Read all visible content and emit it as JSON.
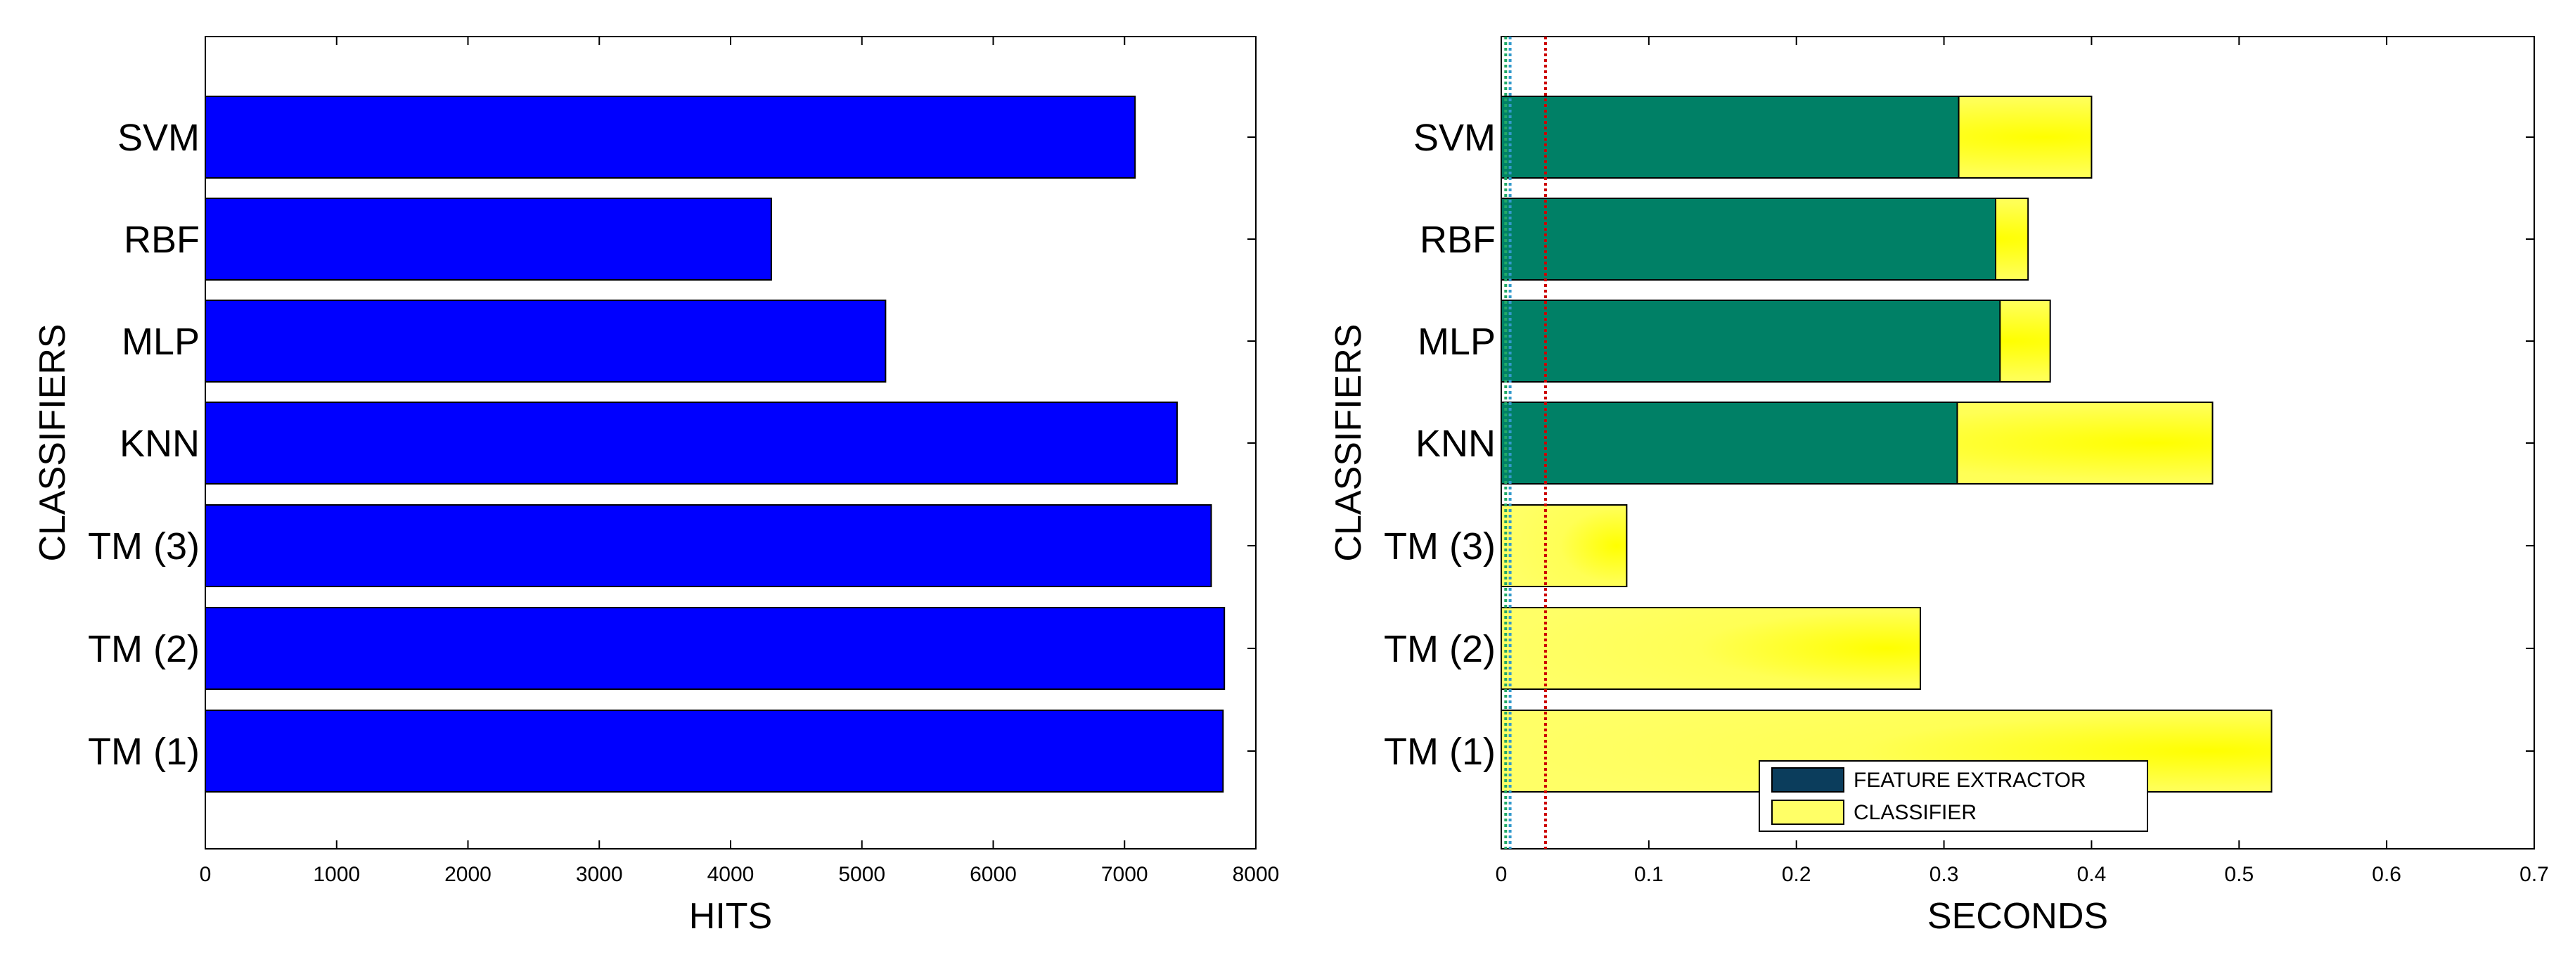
{
  "colors": {
    "hits_bar": "#0000ff",
    "feature_extractor": "#008066",
    "feature_extractor_legend": "#0b3d5c",
    "classifier": "#ffff66",
    "ref_line_red": "#cc0000",
    "ref_line_green": "#22aa66",
    "ref_line_blue": "#3399cc"
  },
  "chart_data": [
    {
      "type": "bar",
      "orientation": "horizontal",
      "categories": [
        "TM (1)",
        "TM (2)",
        "TM (3)",
        "KNN",
        "MLP",
        "RBF",
        "SVM"
      ],
      "values": [
        7750,
        7760,
        7660,
        7400,
        5180,
        4310,
        7080
      ],
      "xlabel": "HITS",
      "ylabel": "CLASSIFIERS",
      "xlim": [
        0,
        8000
      ],
      "xticks": [
        0,
        1000,
        2000,
        3000,
        4000,
        5000,
        6000,
        7000,
        8000
      ],
      "grid": false
    },
    {
      "type": "bar",
      "orientation": "horizontal",
      "stacked": true,
      "categories": [
        "TM (1)",
        "TM (2)",
        "TM (3)",
        "KNN",
        "MLP",
        "RBF",
        "SVM"
      ],
      "series": [
        {
          "name": "FEATURE EXTRACTOR",
          "values": [
            0,
            0,
            0,
            0.309,
            0.338,
            0.335,
            0.31
          ]
        },
        {
          "name": "CLASSIFIER",
          "values": [
            0.522,
            0.284,
            0.085,
            0.173,
            0.034,
            0.022,
            0.09
          ]
        }
      ],
      "reference_lines": [
        0.003,
        0.006,
        0.03
      ],
      "xlabel": "SECONDS",
      "ylabel": "CLASSIFIERS",
      "xlim": [
        0,
        0.7
      ],
      "xticks": [
        "0",
        "0.1",
        "0.2",
        "0.3",
        "0.4",
        "0.5",
        "0.6",
        "0.7"
      ],
      "legend_position": "bottom-center",
      "grid": false
    }
  ]
}
